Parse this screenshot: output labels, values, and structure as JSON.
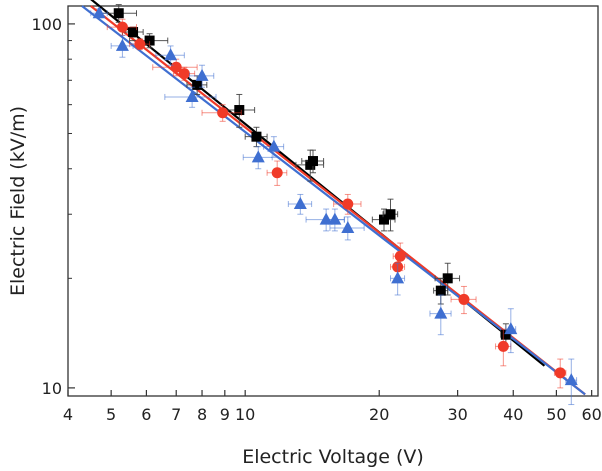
{
  "chart_data": {
    "type": "scatter",
    "title": "",
    "xlabel": "Electric Voltage (V)",
    "ylabel": "Electric Field (kV/m)",
    "xscale": "log",
    "yscale": "log",
    "xlim": [
      4,
      62
    ],
    "ylim": [
      9.5,
      112
    ],
    "x_ticks": [
      4,
      5,
      6,
      7,
      8,
      9,
      10,
      20,
      30,
      40,
      50,
      60
    ],
    "x_tick_labels": [
      "4",
      "5",
      "6",
      "7",
      "8",
      "9",
      "10",
      "20",
      "30",
      "40",
      "50",
      "60"
    ],
    "y_ticks": [
      10,
      100
    ],
    "y_tick_labels": [
      "10",
      "100"
    ],
    "legend": "none",
    "grid": false,
    "series": [
      {
        "marker": "square",
        "color": "#000000",
        "fit_line": [
          [
            4.5,
            117
          ],
          [
            47,
            11.5
          ]
        ],
        "points": [
          {
            "x": 5.2,
            "y": 107,
            "xerr": 0.5,
            "yerr": 6
          },
          {
            "x": 5.6,
            "y": 95,
            "xerr": 0.3,
            "yerr": 3
          },
          {
            "x": 6.1,
            "y": 90,
            "xerr": 0.6,
            "yerr": 4
          },
          {
            "x": 7.8,
            "y": 68,
            "xerr": 0.4,
            "yerr": 4
          },
          {
            "x": 9.7,
            "y": 58,
            "xerr": 0.8,
            "yerr": 6
          },
          {
            "x": 10.6,
            "y": 49,
            "xerr": 0.6,
            "yerr": 3
          },
          {
            "x": 14.0,
            "y": 41,
            "xerr": 1.0,
            "yerr": 4
          },
          {
            "x": 14.2,
            "y": 42,
            "xerr": 0.8,
            "yerr": 3
          },
          {
            "x": 20.5,
            "y": 29,
            "xerr": 1.2,
            "yerr": 2
          },
          {
            "x": 21.2,
            "y": 30,
            "xerr": 0.8,
            "yerr": 3
          },
          {
            "x": 28.5,
            "y": 20,
            "xerr": 1.8,
            "yerr": 2
          },
          {
            "x": 27.5,
            "y": 18.5,
            "xerr": 1.0,
            "yerr": 1.5
          },
          {
            "x": 38.5,
            "y": 14,
            "xerr": 1.0,
            "yerr": 1
          }
        ]
      },
      {
        "marker": "circle",
        "color": "#f03a28",
        "fit_line": [
          [
            4.5,
            112
          ],
          [
            58,
            9.6
          ]
        ],
        "points": [
          {
            "x": 5.3,
            "y": 98,
            "xerr": 0.4,
            "yerr": 5
          },
          {
            "x": 5.8,
            "y": 88,
            "xerr": 0.3,
            "yerr": 3
          },
          {
            "x": 7.0,
            "y": 76,
            "xerr": 0.8,
            "yerr": 4
          },
          {
            "x": 7.3,
            "y": 73,
            "xerr": 0.4,
            "yerr": 3
          },
          {
            "x": 8.9,
            "y": 57,
            "xerr": 0.9,
            "yerr": 3
          },
          {
            "x": 11.8,
            "y": 39,
            "xerr": 0.6,
            "yerr": 3
          },
          {
            "x": 17.0,
            "y": 32,
            "xerr": 1.2,
            "yerr": 2
          },
          {
            "x": 22.3,
            "y": 23,
            "xerr": 0.8,
            "yerr": 2
          },
          {
            "x": 22.0,
            "y": 21.5,
            "xerr": 0.8,
            "yerr": 1.5
          },
          {
            "x": 31.0,
            "y": 17.5,
            "xerr": 2.0,
            "yerr": 1.5
          },
          {
            "x": 38.0,
            "y": 13,
            "xerr": 1.5,
            "yerr": 1.5
          },
          {
            "x": 51.0,
            "y": 11,
            "xerr": 1.5,
            "yerr": 1
          }
        ]
      },
      {
        "marker": "triangle",
        "color": "#3f6fd1",
        "fit_line": [
          [
            4.3,
            112
          ],
          [
            58,
            9.6
          ]
        ],
        "points": [
          {
            "x": 4.7,
            "y": 107,
            "xerr": 0.2,
            "yerr": 3
          },
          {
            "x": 5.3,
            "y": 87,
            "xerr": 0.3,
            "yerr": 6
          },
          {
            "x": 6.8,
            "y": 82,
            "xerr": 0.5,
            "yerr": 5
          },
          {
            "x": 8.0,
            "y": 72,
            "xerr": 0.5,
            "yerr": 5
          },
          {
            "x": 7.6,
            "y": 63,
            "xerr": 1.0,
            "yerr": 4
          },
          {
            "x": 10.7,
            "y": 43,
            "xerr": 0.8,
            "yerr": 3
          },
          {
            "x": 11.6,
            "y": 46,
            "xerr": 0.6,
            "yerr": 3
          },
          {
            "x": 13.3,
            "y": 32,
            "xerr": 0.8,
            "yerr": 2
          },
          {
            "x": 15.2,
            "y": 29,
            "xerr": 1.5,
            "yerr": 2
          },
          {
            "x": 15.9,
            "y": 29,
            "xerr": 0.8,
            "yerr": 2
          },
          {
            "x": 17.0,
            "y": 27.5,
            "xerr": 1.5,
            "yerr": 2
          },
          {
            "x": 22.0,
            "y": 20,
            "xerr": 0.8,
            "yerr": 2
          },
          {
            "x": 27.5,
            "y": 16,
            "xerr": 1.5,
            "yerr": 2
          },
          {
            "x": 39.5,
            "y": 14.5,
            "xerr": 1.0,
            "yerr": 2
          },
          {
            "x": 54.0,
            "y": 10.5,
            "xerr": 1.5,
            "yerr": 1.5
          }
        ]
      }
    ]
  }
}
